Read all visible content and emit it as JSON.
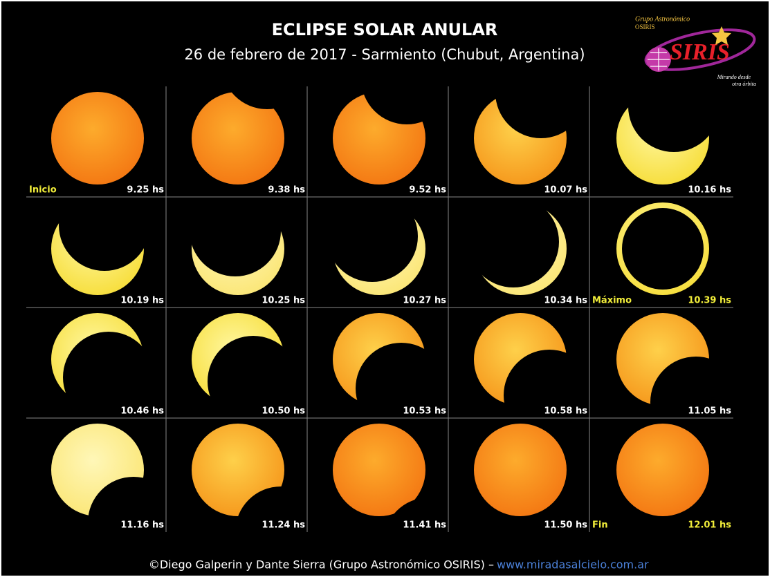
{
  "title": "ECLIPSE SOLAR ANULAR",
  "subtitle": "26 de febrero de 2017 - Sarmiento (Chubut, Argentina)",
  "logo": {
    "group": "Grupo Astronómico",
    "group_name": "OSIRIS",
    "name": "SIRIS",
    "tagline": [
      "Mirando desde",
      "otra órbita"
    ]
  },
  "frames": [
    {
      "label": "Inicio",
      "time": "9.25 hs"
    },
    {
      "time": "9.38 hs"
    },
    {
      "time": "9.52 hs"
    },
    {
      "time": "10.07 hs"
    },
    {
      "time": "10.16 hs"
    },
    {
      "time": "10.19 hs"
    },
    {
      "time": "10.25 hs"
    },
    {
      "time": "10.27 hs"
    },
    {
      "time": "10.34 hs"
    },
    {
      "label": "Máximo",
      "time": "10.39 hs"
    },
    {
      "time": "10.46 hs"
    },
    {
      "time": "10.50 hs"
    },
    {
      "time": "10.53 hs"
    },
    {
      "time": "10.58 hs"
    },
    {
      "time": "11.05 hs"
    },
    {
      "time": "11.16 hs"
    },
    {
      "time": "11.24 hs"
    },
    {
      "time": "11.41 hs"
    },
    {
      "time": "11.50 hs"
    },
    {
      "label": "Fin",
      "time": "12.01 hs"
    }
  ],
  "footer": {
    "credit": "©Diego Galperin y Dante Sierra (Grupo Astronómico OSIRIS) –",
    "url": "www.miradasalcielo.com.ar"
  }
}
